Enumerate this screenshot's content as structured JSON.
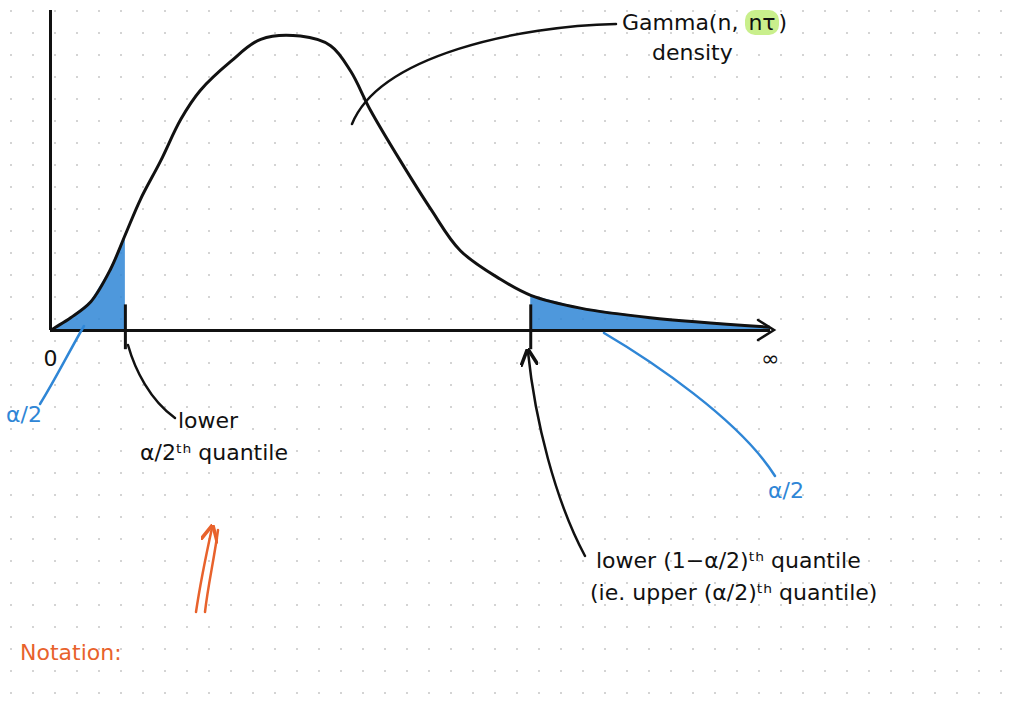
{
  "chart_data": {
    "type": "area",
    "curve_label": {
      "lines": [
        "Gamma(n, nτ)",
        "density"
      ],
      "highlight": "nτ"
    },
    "x": [
      0,
      0.07,
      0.28,
      0.56,
      0.83,
      1.04,
      1.25,
      1.53,
      1.81,
      2.08,
      2.5,
      2.92,
      3.47,
      3.89,
      4.17,
      4.44,
      4.86,
      5.28,
      5.69,
      6.25,
      6.67,
      7.36,
      8.33,
      10
    ],
    "values": [
      0,
      0.01,
      0.04,
      0.09,
      0.19,
      0.3,
      0.41,
      0.53,
      0.66,
      0.75,
      0.84,
      0.91,
      0.92,
      0.89,
      0.81,
      0.69,
      0.53,
      0.38,
      0.25,
      0.16,
      0.11,
      0.07,
      0.04,
      0.01
    ],
    "color": "#111111",
    "xlim": [
      0,
      10
    ],
    "ylim": [
      0,
      1
    ],
    "xticks": [
      {
        "value": 0,
        "label": "0"
      },
      {
        "value": 10,
        "label": "∞"
      }
    ],
    "yticks": [],
    "tick_labels": "x",
    "grid": false,
    "tail_color": "#2f86d6",
    "quantiles": [
      {
        "value": 1.04,
        "label": [
          "lower",
          "α/2ᵗʰ quantile"
        ],
        "tail_label": "α/2"
      },
      {
        "value": 6.67,
        "label": [
          "lower (1−α/2)ᵗʰ quantile",
          "(ie. upper (α/2)ᵗʰ quantile)"
        ],
        "tail_label": "α/2"
      }
    ],
    "notation": "Notation:"
  }
}
